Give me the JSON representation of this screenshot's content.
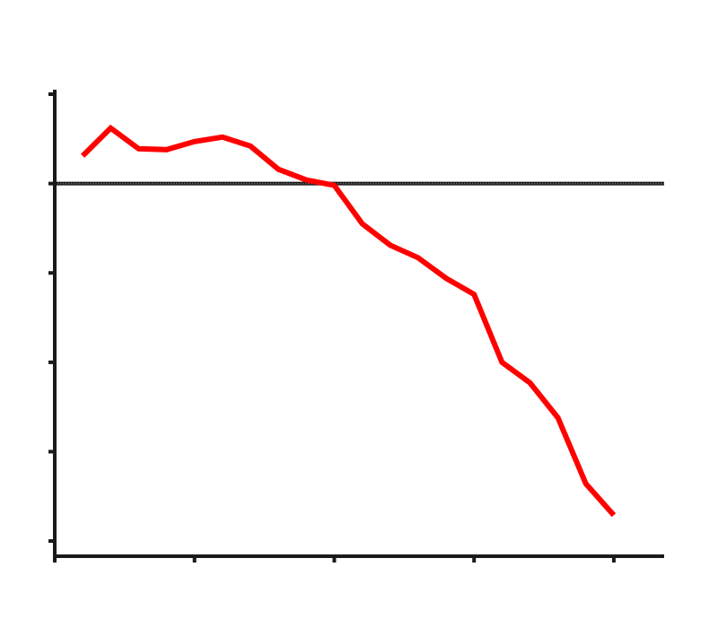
{
  "chart_data": {
    "type": "line",
    "title": "",
    "xlabel": "",
    "ylabel": "",
    "x": [
      1,
      2,
      3,
      4,
      5,
      6,
      7,
      8,
      9,
      10,
      11,
      12,
      13,
      14,
      15,
      16,
      17,
      18,
      19,
      20
    ],
    "x_ticks": [
      0,
      5,
      10,
      15,
      20
    ],
    "xlim": [
      0,
      21.8
    ],
    "y_ticks": [
      1,
      0,
      -1,
      -2,
      -3,
      -4
    ],
    "ylim": [
      -4.17,
      1.03
    ],
    "reference_line_y": 0,
    "series": [
      {
        "values": [
          0.31,
          0.62,
          0.39,
          0.38,
          0.47,
          0.52,
          0.42,
          0.16,
          0.04,
          -0.02,
          -0.45,
          -0.69,
          -0.83,
          -1.06,
          -1.24,
          -2.0,
          -2.23,
          -2.62,
          -3.36,
          -3.71
        ],
        "color": "#ff0000"
      }
    ],
    "axis_color": "#1a1a1a",
    "grid": false,
    "legend": "none"
  }
}
